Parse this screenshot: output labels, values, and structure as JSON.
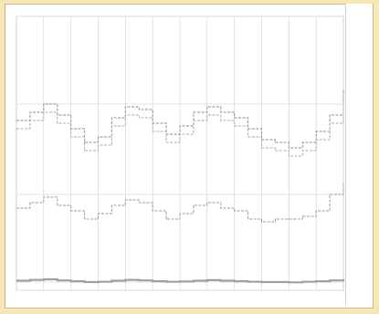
{
  "chart_data": {
    "type": "line",
    "title": "",
    "corner_label": "",
    "xlabel": "",
    "ylabel": "",
    "grid": true,
    "legend_position": "right",
    "x_category_count": 13,
    "x_tick_labels": [
      "",
      "",
      "",
      "",
      "",
      "",
      "",
      "",
      "",
      "",
      "",
      "",
      ""
    ],
    "y_tick_labels": [
      "",
      "",
      ""
    ],
    "ylim": [
      0,
      10
    ],
    "legend_entries": [
      "",
      "",
      "",
      "",
      "",
      "",
      ""
    ],
    "colors": {
      "background": "#f6e7b4",
      "plot_area": "#ffffff",
      "grid": "#c8c8c8",
      "series_upper": "#8c8c8c",
      "series_upper_alt": "#9bb89b",
      "series_middle": "#999999",
      "series_lower": "#a0a0a0"
    },
    "series": [
      {
        "name": "",
        "style": "dashed",
        "x": [
          0,
          0.5,
          1,
          1.5,
          2,
          2.5,
          3,
          3.5,
          4,
          4.5,
          5,
          5.5,
          6,
          6.5,
          7,
          7.5,
          8,
          8.5,
          9,
          9.5,
          10,
          10.5,
          11,
          11.5,
          12
        ],
        "values": [
          6.2,
          6.5,
          6.8,
          6.4,
          5.9,
          5.4,
          5.6,
          6.3,
          6.7,
          6.6,
          6.1,
          5.7,
          6.0,
          6.5,
          6.7,
          6.5,
          6.3,
          5.9,
          5.5,
          5.4,
          5.2,
          5.4,
          5.8,
          6.4,
          7.3
        ]
      },
      {
        "name": "",
        "style": "dashed",
        "x": [
          0,
          0.5,
          1,
          1.5,
          2,
          2.5,
          3,
          3.5,
          4,
          4.5,
          5,
          5.5,
          6,
          6.5,
          7,
          7.5,
          8,
          8.5,
          9,
          9.5,
          10,
          10.5,
          11,
          11.5,
          12
        ],
        "values": [
          5.9,
          6.2,
          6.5,
          6.1,
          5.6,
          5.1,
          5.3,
          6.0,
          6.4,
          6.3,
          5.8,
          5.4,
          5.7,
          6.2,
          6.4,
          6.2,
          6.0,
          5.6,
          5.2,
          5.1,
          4.9,
          5.1,
          5.5,
          6.1,
          7.0
        ]
      },
      {
        "name": "",
        "style": "dashed",
        "x": [
          0,
          0.5,
          1,
          1.5,
          2,
          2.5,
          3,
          3.5,
          4,
          4.5,
          5,
          5.5,
          6,
          6.5,
          7,
          7.5,
          8,
          8.5,
          9,
          9.5,
          10,
          10.5,
          11,
          11.5,
          12
        ],
        "values": [
          3.0,
          3.2,
          3.4,
          3.1,
          2.9,
          2.6,
          2.8,
          3.1,
          3.3,
          3.2,
          2.9,
          2.6,
          2.8,
          3.1,
          3.2,
          3.0,
          2.9,
          2.6,
          2.5,
          2.6,
          2.6,
          2.7,
          2.9,
          3.5,
          3.9
        ]
      },
      {
        "name": "",
        "style": "solid",
        "x": [
          0,
          0.5,
          1,
          1.5,
          2,
          2.5,
          3,
          3.5,
          4,
          4.5,
          5,
          5.5,
          6,
          6.5,
          7,
          7.5,
          8,
          8.5,
          9,
          9.5,
          10,
          10.5,
          11,
          11.5,
          12
        ],
        "values": [
          0.35,
          0.38,
          0.4,
          0.36,
          0.33,
          0.3,
          0.31,
          0.35,
          0.38,
          0.36,
          0.33,
          0.31,
          0.32,
          0.35,
          0.37,
          0.35,
          0.33,
          0.31,
          0.3,
          0.3,
          0.29,
          0.31,
          0.33,
          0.36,
          0.4
        ]
      }
    ]
  }
}
